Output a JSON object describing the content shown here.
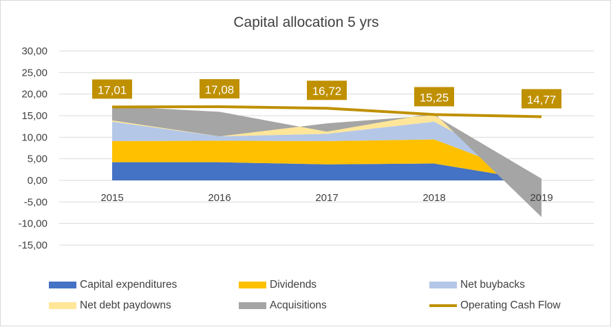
{
  "chart_data": {
    "type": "area",
    "title": "Capital allocation 5 yrs",
    "categories": [
      "2015",
      "2016",
      "2017",
      "2018",
      "2019"
    ],
    "yticks": [
      "30,00",
      "25,00",
      "20,00",
      "15,00",
      "10,00",
      "5,00",
      "0,00",
      "-5,00",
      "-10,00",
      "-15,00"
    ],
    "ylim": [
      -15,
      30
    ],
    "grid": true,
    "legend_position": "bottom",
    "series": [
      {
        "name": "Capital expenditures",
        "kind": "stacked-area",
        "color": "#4472c4",
        "values": [
          4.2,
          4.2,
          3.7,
          3.9,
          -0.2
        ]
      },
      {
        "name": "Dividends",
        "kind": "stacked-area",
        "color": "#ffc000",
        "values": [
          4.9,
          5.0,
          5.4,
          5.6,
          0.3
        ]
      },
      {
        "name": "Net buybacks",
        "kind": "stacked-area",
        "color": "#b4c7e7",
        "values": [
          4.5,
          1.0,
          1.7,
          4.1,
          0.3
        ]
      },
      {
        "name": "Net debt paydowns",
        "kind": "stacked-area",
        "color": "#ffe699",
        "values": [
          0.3,
          0.0,
          2.4,
          1.5,
          0.0
        ]
      },
      {
        "name": "Acquisitions",
        "kind": "stacked-area",
        "color": "#a5a5a5",
        "values": [
          3.3,
          5.7,
          -1.9,
          0.5,
          -8.9
        ]
      },
      {
        "name": "Operating Cash Flow",
        "kind": "line",
        "color": "#bf9000",
        "values": [
          17.01,
          17.08,
          16.72,
          15.25,
          14.77
        ]
      }
    ],
    "data_labels": [
      "17,01",
      "17,08",
      "16,72",
      "15,25",
      "14,77"
    ]
  }
}
